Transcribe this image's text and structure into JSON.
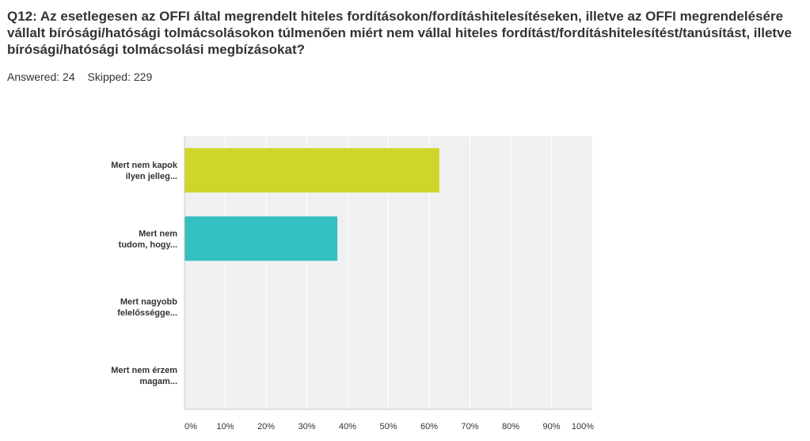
{
  "question": {
    "title": "Q12: Az esetlegesen az OFFI által megrendelt hiteles fordításokon/fordításhitelesítéseken, illetve az OFFI megrendelésére vállalt bírósági/hatósági tolmácsolásokon túlmenően miért nem vállal hiteles fordítást/fordításhitelesítést/tanúsítást, illetve bírósági/hatósági tolmácsolási megbízásokat?"
  },
  "stats": {
    "answered": "Answered: 24",
    "skipped": "Skipped: 229"
  },
  "chart_data": {
    "type": "bar",
    "orientation": "horizontal",
    "categories": [
      [
        "Mert nem kapok",
        "ilyen jelleg..."
      ],
      [
        "Mert nem",
        "tudom, hogy..."
      ],
      [
        "Mert nagyobb",
        "felelősségge..."
      ],
      [
        "Mert nem érzem",
        "magam..."
      ]
    ],
    "values": [
      62.5,
      37.5,
      0,
      0
    ],
    "colors": [
      "#cfd62a",
      "#34bfc0",
      "#a9a9a9",
      "#a9a9a9"
    ],
    "xlim": [
      0,
      100
    ],
    "xticks": [
      "0%",
      "10%",
      "20%",
      "30%",
      "40%",
      "50%",
      "60%",
      "70%",
      "80%",
      "90%",
      "100%"
    ],
    "grid": true,
    "title": "",
    "xlabel": "",
    "ylabel": ""
  }
}
